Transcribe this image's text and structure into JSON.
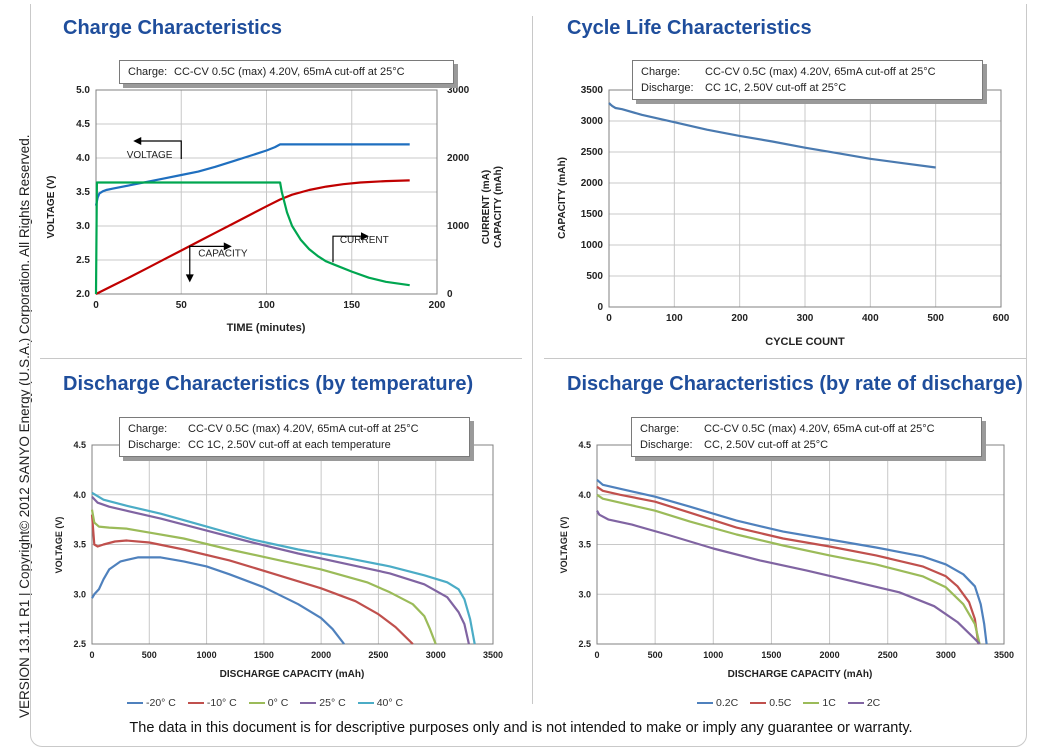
{
  "sidebar_text": "VERSION 13.11 R1 | Copyright© 2012 SANYO Energy (U.S.A.) Corporation. All Rights Reserved.",
  "footer_text": "The data in this document is for descriptive purposes only and is not intended to make or imply any guarantee or warranty.",
  "panels": {
    "charge": {
      "title": "Charge Characteristics",
      "note_key1": "Charge:",
      "note_val1": "CC-CV 0.5C (max) 4.20V, 65mA cut-off at 25°C"
    },
    "cycle": {
      "title": "Cycle Life Characteristics",
      "note_key1": "Charge:",
      "note_val1": "CC-CV 0.5C (max) 4.20V, 65mA cut-off at 25°C",
      "note_key2": "Discharge:",
      "note_val2": "CC 1C, 2.50V cut-off at 25°C"
    },
    "temp": {
      "title": "Discharge Characteristics (by temperature)",
      "note_key1": "Charge:",
      "note_val1": "CC-CV 0.5C (max) 4.20V, 65mA cut-off at 25°C",
      "note_key2": "Discharge:",
      "note_val2": "CC 1C, 2.50V cut-off at each temperature"
    },
    "rate": {
      "title": "Discharge Characteristics (by rate of discharge)",
      "note_key1": "Charge:",
      "note_val1": "CC-CV 0.5C (max) 4.20V, 65mA cut-off at 25°C",
      "note_key2": "Discharge:",
      "note_val2": "CC, 2.50V cut-off at 25°C"
    }
  },
  "chart_data": [
    {
      "id": "charge",
      "type": "line",
      "xlabel": "TIME (minutes)",
      "ylabel": "VOLTAGE (V)",
      "y2label": [
        "CURRENT (mA)",
        "CAPACITY (mAh)"
      ],
      "xlim": [
        0,
        200
      ],
      "ylim": [
        2.0,
        5.0
      ],
      "y2lim": [
        0,
        3000
      ],
      "xticks": [
        0,
        50,
        100,
        150,
        200
      ],
      "yticks": [
        2.0,
        2.5,
        3.0,
        3.5,
        4.0,
        4.5,
        5.0
      ],
      "y2ticks": [
        0,
        1000,
        2000,
        3000
      ],
      "grid": true,
      "annotations": [
        {
          "text": "VOLTAGE",
          "x": 18,
          "y": 4.0
        },
        {
          "text": "CAPACITY",
          "x": 60,
          "y": 2.55
        },
        {
          "text": "CURRENT",
          "x": 143,
          "y": 2.75
        }
      ],
      "series": [
        {
          "color": "#1f6fbf",
          "axis": "y",
          "points": [
            [
              0,
              3.3
            ],
            [
              1,
              3.42
            ],
            [
              2,
              3.48
            ],
            [
              4,
              3.51
            ],
            [
              6,
              3.53
            ],
            [
              10,
              3.55
            ],
            [
              20,
              3.6
            ],
            [
              30,
              3.65
            ],
            [
              40,
              3.7
            ],
            [
              50,
              3.75
            ],
            [
              60,
              3.8
            ],
            [
              70,
              3.87
            ],
            [
              80,
              3.95
            ],
            [
              90,
              4.03
            ],
            [
              100,
              4.11
            ],
            [
              105,
              4.16
            ],
            [
              108,
              4.2
            ],
            [
              120,
              4.2
            ],
            [
              150,
              4.2
            ],
            [
              184,
              4.2
            ]
          ]
        },
        {
          "color": "#c00000",
          "axis": "y2",
          "points": [
            [
              0,
              0
            ],
            [
              10,
              125
            ],
            [
              20,
              250
            ],
            [
              30,
              380
            ],
            [
              40,
              510
            ],
            [
              50,
              640
            ],
            [
              60,
              770
            ],
            [
              70,
              900
            ],
            [
              80,
              1030
            ],
            [
              90,
              1160
            ],
            [
              100,
              1290
            ],
            [
              108,
              1390
            ],
            [
              115,
              1460
            ],
            [
              125,
              1530
            ],
            [
              135,
              1580
            ],
            [
              145,
              1615
            ],
            [
              155,
              1640
            ],
            [
              170,
              1660
            ],
            [
              184,
              1670
            ]
          ]
        },
        {
          "color": "#00a650",
          "axis": "y2",
          "points": [
            [
              0,
              0
            ],
            [
              0.5,
              1640
            ],
            [
              50,
              1640
            ],
            [
              108,
              1640
            ],
            [
              109,
              1500
            ],
            [
              112,
              1200
            ],
            [
              115,
              1000
            ],
            [
              120,
              800
            ],
            [
              125,
              660
            ],
            [
              130,
              560
            ],
            [
              135,
              480
            ],
            [
              140,
              430
            ],
            [
              150,
              330
            ],
            [
              160,
              240
            ],
            [
              170,
              180
            ],
            [
              184,
              130
            ]
          ]
        }
      ]
    },
    {
      "id": "cycle",
      "type": "line",
      "xlabel": "CYCLE COUNT",
      "ylabel": "CAPACITY (mAh)",
      "xlim": [
        0,
        600
      ],
      "ylim": [
        0,
        3500
      ],
      "xticks": [
        0,
        100,
        200,
        300,
        400,
        500,
        600
      ],
      "yticks": [
        0,
        500,
        1000,
        1500,
        2000,
        2500,
        3000,
        3500
      ],
      "grid": true,
      "series": [
        {
          "color": "#4a7ab0",
          "points": [
            [
              0,
              3290
            ],
            [
              2,
              3270
            ],
            [
              5,
              3240
            ],
            [
              10,
              3210
            ],
            [
              20,
              3190
            ],
            [
              50,
              3100
            ],
            [
              100,
              2980
            ],
            [
              150,
              2860
            ],
            [
              200,
              2760
            ],
            [
              250,
              2670
            ],
            [
              300,
              2570
            ],
            [
              350,
              2480
            ],
            [
              400,
              2390
            ],
            [
              450,
              2320
            ],
            [
              500,
              2250
            ]
          ]
        }
      ]
    },
    {
      "id": "temp",
      "type": "line",
      "xlabel": "DISCHARGE CAPACITY (mAh)",
      "ylabel": "VOLTAGE (V)",
      "xlim": [
        0,
        3500
      ],
      "ylim": [
        2.5,
        4.5
      ],
      "xticks": [
        0,
        500,
        1000,
        1500,
        2000,
        2500,
        3000,
        3500
      ],
      "yticks": [
        2.5,
        3.0,
        3.5,
        4.0,
        4.5
      ],
      "grid": true,
      "legend": "bottom",
      "series": [
        {
          "name": "-20° C",
          "color": "#4f81bd",
          "points": [
            [
              0,
              2.96
            ],
            [
              20,
              3.0
            ],
            [
              60,
              3.05
            ],
            [
              100,
              3.15
            ],
            [
              150,
              3.25
            ],
            [
              250,
              3.33
            ],
            [
              400,
              3.37
            ],
            [
              600,
              3.37
            ],
            [
              800,
              3.33
            ],
            [
              1000,
              3.28
            ],
            [
              1200,
              3.2
            ],
            [
              1500,
              3.07
            ],
            [
              1800,
              2.9
            ],
            [
              2000,
              2.76
            ],
            [
              2100,
              2.65
            ],
            [
              2200,
              2.5
            ]
          ]
        },
        {
          "name": "-10° C",
          "color": "#c0504d",
          "points": [
            [
              0,
              3.8
            ],
            [
              20,
              3.5
            ],
            [
              50,
              3.48
            ],
            [
              100,
              3.5
            ],
            [
              200,
              3.53
            ],
            [
              300,
              3.54
            ],
            [
              500,
              3.52
            ],
            [
              800,
              3.45
            ],
            [
              1200,
              3.34
            ],
            [
              1600,
              3.2
            ],
            [
              2000,
              3.06
            ],
            [
              2300,
              2.93
            ],
            [
              2500,
              2.8
            ],
            [
              2650,
              2.67
            ],
            [
              2800,
              2.5
            ]
          ]
        },
        {
          "name": "0° C",
          "color": "#9bbb59",
          "points": [
            [
              0,
              3.85
            ],
            [
              20,
              3.72
            ],
            [
              60,
              3.68
            ],
            [
              150,
              3.67
            ],
            [
              300,
              3.66
            ],
            [
              500,
              3.62
            ],
            [
              800,
              3.56
            ],
            [
              1200,
              3.45
            ],
            [
              1600,
              3.35
            ],
            [
              2000,
              3.25
            ],
            [
              2400,
              3.12
            ],
            [
              2600,
              3.02
            ],
            [
              2800,
              2.9
            ],
            [
              2900,
              2.78
            ],
            [
              2950,
              2.65
            ],
            [
              3000,
              2.5
            ]
          ]
        },
        {
          "name": "25° C",
          "color": "#8064a2",
          "points": [
            [
              0,
              3.98
            ],
            [
              50,
              3.92
            ],
            [
              150,
              3.88
            ],
            [
              300,
              3.84
            ],
            [
              600,
              3.76
            ],
            [
              1000,
              3.64
            ],
            [
              1400,
              3.52
            ],
            [
              1800,
              3.41
            ],
            [
              2200,
              3.31
            ],
            [
              2600,
              3.21
            ],
            [
              2900,
              3.1
            ],
            [
              3100,
              2.97
            ],
            [
              3200,
              2.82
            ],
            [
              3250,
              2.7
            ],
            [
              3290,
              2.5
            ]
          ]
        },
        {
          "name": "40° C",
          "color": "#4bacc6",
          "points": [
            [
              0,
              4.02
            ],
            [
              100,
              3.95
            ],
            [
              300,
              3.89
            ],
            [
              600,
              3.81
            ],
            [
              1000,
              3.68
            ],
            [
              1400,
              3.55
            ],
            [
              1800,
              3.45
            ],
            [
              2200,
              3.37
            ],
            [
              2600,
              3.28
            ],
            [
              2900,
              3.19
            ],
            [
              3100,
              3.12
            ],
            [
              3200,
              3.05
            ],
            [
              3250,
              2.95
            ],
            [
              3300,
              2.75
            ],
            [
              3340,
              2.5
            ]
          ]
        }
      ]
    },
    {
      "id": "rate",
      "type": "line",
      "xlabel": "DISCHARGE CAPACITY (mAh)",
      "ylabel": "VOLTAGE (V)",
      "xlim": [
        0,
        3500
      ],
      "ylim": [
        2.5,
        4.5
      ],
      "xticks": [
        0,
        500,
        1000,
        1500,
        2000,
        2500,
        3000,
        3500
      ],
      "yticks": [
        2.5,
        3.0,
        3.5,
        4.0,
        4.5
      ],
      "grid": true,
      "legend": "bottom",
      "series": [
        {
          "name": "0.2C",
          "color": "#4f81bd",
          "points": [
            [
              0,
              4.15
            ],
            [
              50,
              4.1
            ],
            [
              200,
              4.06
            ],
            [
              500,
              3.98
            ],
            [
              800,
              3.88
            ],
            [
              1200,
              3.74
            ],
            [
              1600,
              3.63
            ],
            [
              2000,
              3.55
            ],
            [
              2400,
              3.47
            ],
            [
              2800,
              3.38
            ],
            [
              3000,
              3.3
            ],
            [
              3150,
              3.2
            ],
            [
              3250,
              3.08
            ],
            [
              3300,
              2.9
            ],
            [
              3330,
              2.7
            ],
            [
              3350,
              2.5
            ]
          ]
        },
        {
          "name": "0.5C",
          "color": "#c0504d",
          "points": [
            [
              0,
              4.08
            ],
            [
              50,
              4.04
            ],
            [
              200,
              4.0
            ],
            [
              500,
              3.93
            ],
            [
              800,
              3.82
            ],
            [
              1200,
              3.67
            ],
            [
              1600,
              3.56
            ],
            [
              2000,
              3.48
            ],
            [
              2400,
              3.39
            ],
            [
              2800,
              3.28
            ],
            [
              3000,
              3.18
            ],
            [
              3100,
              3.08
            ],
            [
              3200,
              2.92
            ],
            [
              3250,
              2.75
            ],
            [
              3280,
              2.5
            ]
          ]
        },
        {
          "name": "1C",
          "color": "#9bbb59",
          "points": [
            [
              0,
              4.0
            ],
            [
              50,
              3.96
            ],
            [
              200,
              3.92
            ],
            [
              500,
              3.84
            ],
            [
              800,
              3.73
            ],
            [
              1200,
              3.6
            ],
            [
              1600,
              3.49
            ],
            [
              2000,
              3.39
            ],
            [
              2400,
              3.3
            ],
            [
              2800,
              3.18
            ],
            [
              3000,
              3.07
            ],
            [
              3150,
              2.9
            ],
            [
              3250,
              2.7
            ],
            [
              3290,
              2.5
            ]
          ]
        },
        {
          "name": "2C",
          "color": "#8064a2",
          "points": [
            [
              0,
              3.84
            ],
            [
              20,
              3.8
            ],
            [
              100,
              3.75
            ],
            [
              300,
              3.7
            ],
            [
              600,
              3.6
            ],
            [
              1000,
              3.46
            ],
            [
              1400,
              3.34
            ],
            [
              1800,
              3.24
            ],
            [
              2200,
              3.13
            ],
            [
              2600,
              3.02
            ],
            [
              2900,
              2.88
            ],
            [
              3100,
              2.72
            ],
            [
              3250,
              2.55
            ],
            [
              3290,
              2.5
            ]
          ]
        }
      ]
    }
  ]
}
